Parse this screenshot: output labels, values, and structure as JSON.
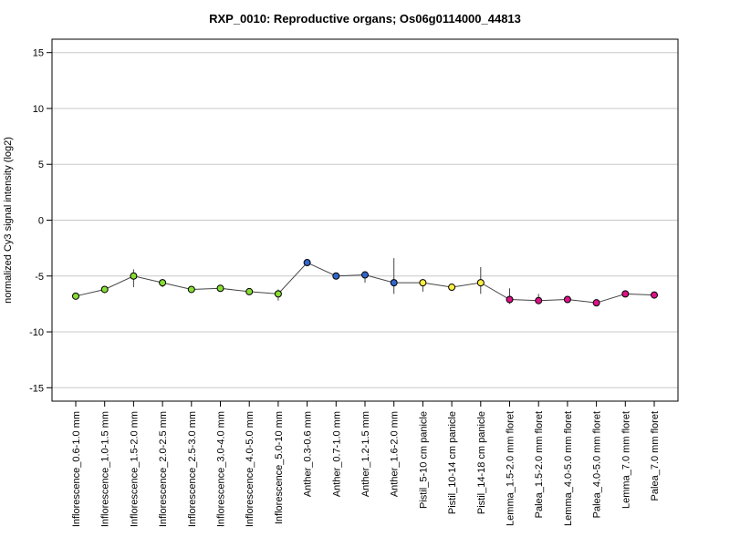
{
  "chart_data": {
    "type": "line",
    "title": "RXP_0010: Reproductive organs; Os06g0114000_44813",
    "xlabel": "",
    "ylabel": "normalized Cy3 signal intensity (log2)",
    "ylim": [
      -16.2,
      16.2
    ],
    "yticks": [
      15,
      10,
      5,
      0,
      -5,
      -10,
      -15
    ],
    "grid": true,
    "categories": [
      "Inflorescence_0.6-1.0 mm",
      "Inflorescence_1.0-1.5 mm",
      "Inflorescence_1.5-2.0 mm",
      "Inflorescence_2.0-2.5 mm",
      "Inflorescence_2.5-3.0 mm",
      "Inflorescence_3.0-4.0 mm",
      "Inflorescence_4.0-5.0 mm",
      "Inflorescence_5.0-10 mm",
      "Anther_0.3-0.6 mm",
      "Anther_0.7-1.0 mm",
      "Anther_1.2-1.5 mm",
      "Anther_1.6-2.0 mm",
      "Pistil_5-10 cm panicle",
      "Pistil_10-14 cm panicle",
      "Pistil_14-18 cm panicle",
      "Lemma_1.5-2.0 mm floret",
      "Palea_1.5-2.0 mm floret",
      "Lemma_4.0-5.0 mm floret",
      "Palea_4.0-5.0 mm floret",
      "Lemma_7.0 mm floret",
      "Palea_7.0 mm floret"
    ],
    "values": [
      -6.8,
      -6.2,
      -5.0,
      -5.6,
      -6.2,
      -6.1,
      -6.4,
      -6.6,
      -3.8,
      -5.0,
      -4.9,
      -5.6,
      -5.6,
      -6.0,
      -5.6,
      -7.1,
      -7.2,
      -7.1,
      -7.4,
      -6.6,
      -6.7
    ],
    "error_low": [
      -6.9,
      -6.4,
      -6.0,
      -6.0,
      -6.3,
      -6.4,
      -6.6,
      -7.2,
      -3.9,
      -5.2,
      -5.6,
      -6.6,
      -6.4,
      -6.1,
      -6.6,
      -7.5,
      -7.4,
      -7.3,
      -7.6,
      -6.7,
      -6.8
    ],
    "error_high": [
      -6.6,
      -6.0,
      -4.4,
      -5.3,
      -6.0,
      -5.8,
      -6.2,
      -6.2,
      -3.7,
      -4.8,
      -4.6,
      -3.4,
      -5.3,
      -5.8,
      -4.2,
      -6.1,
      -6.6,
      -6.9,
      -7.2,
      -6.4,
      -6.5
    ],
    "point_colors": [
      "#88dd33",
      "#88dd33",
      "#88dd33",
      "#88dd33",
      "#88dd33",
      "#88dd33",
      "#88dd33",
      "#88dd33",
      "#3366cc",
      "#3366cc",
      "#3366cc",
      "#3366cc",
      "#ffee44",
      "#ffee44",
      "#ffee44",
      "#dd1188",
      "#dd1188",
      "#dd1188",
      "#dd1188",
      "#dd1188",
      "#dd1188"
    ]
  }
}
